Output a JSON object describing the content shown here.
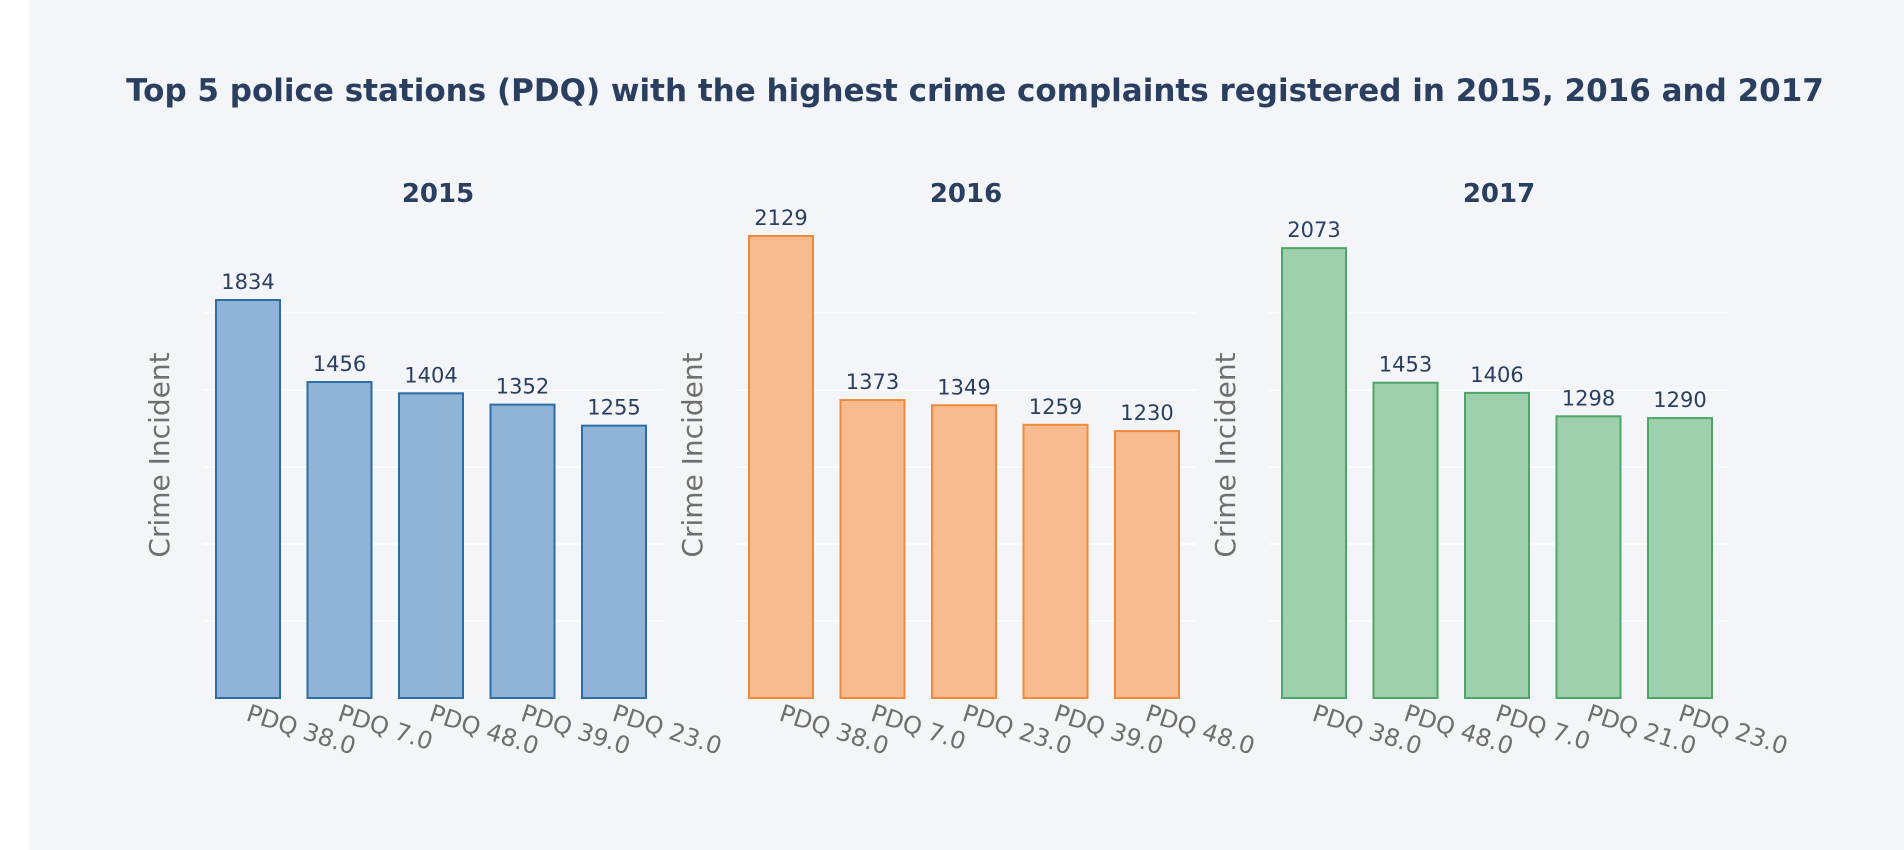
{
  "chart_data": {
    "type": "bar",
    "title": "Top 5 police stations (PDQ) with the highest crime complaints registered in 2015, 2016 and 2017",
    "ylabel": "Crime Incident",
    "ylim": [
      0,
      2129
    ],
    "grid": true,
    "panels": [
      {
        "title": "2015",
        "categories": [
          "PDQ 38.0",
          "PDQ 7.0",
          "PDQ 48.0",
          "PDQ 39.0",
          "PDQ 23.0"
        ],
        "values": [
          1834,
          1456,
          1404,
          1352,
          1255
        ],
        "fill": "#8fb4d7",
        "stroke": "#2e6da4"
      },
      {
        "title": "2016",
        "categories": [
          "PDQ 38.0",
          "PDQ 7.0",
          "PDQ 23.0",
          "PDQ 39.0",
          "PDQ 48.0"
        ],
        "values": [
          2129,
          1373,
          1349,
          1259,
          1230
        ],
        "fill": "#f8bb90",
        "stroke": "#f08a38"
      },
      {
        "title": "2017",
        "categories": [
          "PDQ 38.0",
          "PDQ 48.0",
          "PDQ 7.0",
          "PDQ 21.0",
          "PDQ 23.0"
        ],
        "values": [
          2073,
          1453,
          1406,
          1298,
          1290
        ],
        "fill": "#9ed0ad",
        "stroke": "#4da668"
      }
    ]
  }
}
